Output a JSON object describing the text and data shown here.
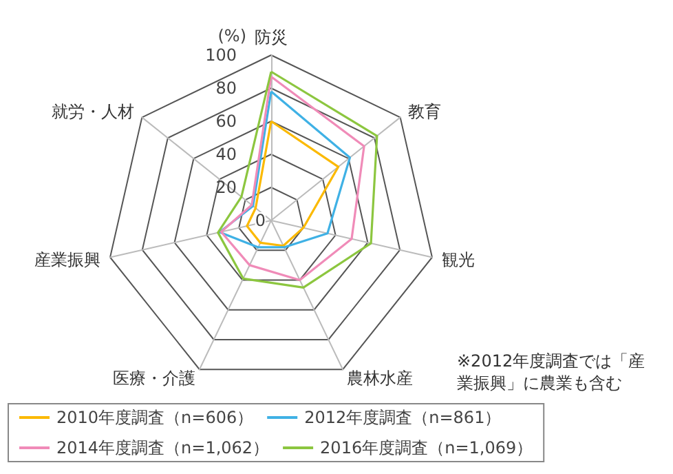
{
  "chart_data": {
    "type": "radar",
    "ylabel": "(%)",
    "categories": [
      "防災",
      "教育",
      "観光",
      "農林水産",
      "医療・介護",
      "産業振興",
      "就労・人材"
    ],
    "ylim": [
      0,
      100
    ],
    "yticks": [
      0,
      20,
      40,
      60,
      80,
      100
    ],
    "grid": true,
    "legend": "bottom left",
    "marker": "none",
    "line_style": "solid",
    "annotations": [
      "※2012年度調査では「産業振興」に農業も含む"
    ],
    "series": [
      {
        "name": "2010年度調査（n=606）",
        "color": "#fbb900",
        "values": [
          60,
          52,
          20,
          17,
          15,
          15,
          12
        ]
      },
      {
        "name": "2012年度調査（n=861）",
        "color": "#3fb1e5",
        "values": [
          78,
          61,
          35,
          18,
          18,
          32,
          14
        ]
      },
      {
        "name": "2014年度調査（n=1,062）",
        "color": "#f08bb8",
        "values": [
          87,
          72,
          50,
          40,
          30,
          31,
          15
        ]
      },
      {
        "name": "2016年度調査（n=1,069）",
        "color": "#8cc63f",
        "values": [
          90,
          82,
          62,
          45,
          39,
          33,
          23
        ]
      }
    ]
  }
}
